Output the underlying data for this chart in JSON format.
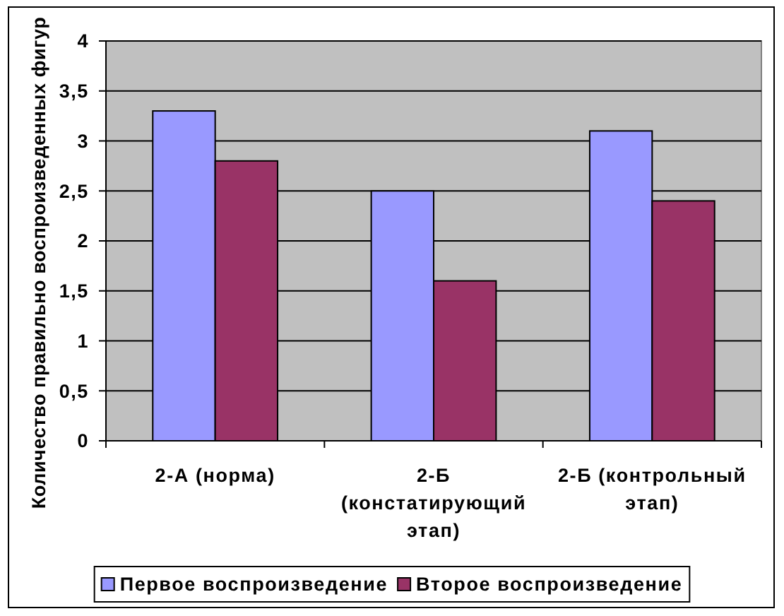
{
  "chart_data": {
    "type": "bar",
    "ylabel": "Количество правильно воспроизведенных фигур",
    "categories": [
      "2-А (норма)",
      "2-Б (констатирующий этап)",
      "2-Б (контрольный этап)"
    ],
    "series": [
      {
        "name": "Первое воспроизведение",
        "color": "#9999ff",
        "values": [
          3.3,
          2.5,
          3.1
        ]
      },
      {
        "name": "Второе воспроизведение",
        "color": "#993366",
        "values": [
          2.8,
          1.6,
          2.4
        ]
      }
    ],
    "ylim": [
      0,
      4
    ],
    "yticks": [
      0,
      {
        "value": 0.5,
        "label": "0,5"
      },
      1,
      {
        "value": 1.5,
        "label": "1,5"
      },
      2,
      {
        "value": 2.5,
        "label": "2,5"
      },
      3,
      {
        "value": 3.5,
        "label": "3,5"
      },
      4
    ],
    "grid": "y",
    "legend": "bottom"
  }
}
